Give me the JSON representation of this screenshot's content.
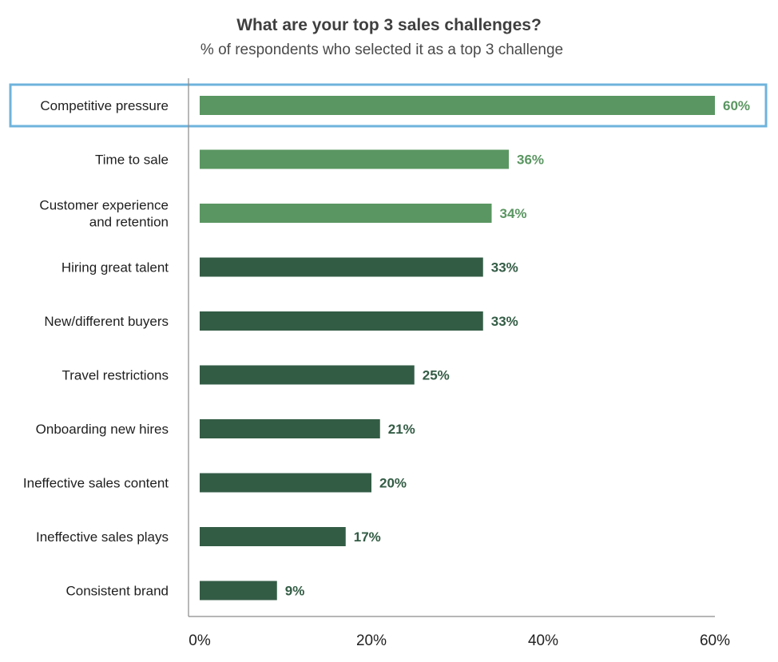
{
  "chart_data": {
    "type": "bar",
    "orientation": "horizontal",
    "title": "What are your top 3 sales challenges?",
    "subtitle": "% of respondents who selected it as a top 3 challenge",
    "categories": [
      "Competitive pressure",
      "Time to sale",
      "Customer experience and retention",
      "Hiring great talent",
      "New/different buyers",
      "Travel restrictions",
      "Onboarding new hires",
      "Ineffective sales content",
      "Ineffective sales plays",
      "Consistent brand"
    ],
    "category_lines": [
      [
        "Competitive pressure"
      ],
      [
        "Time to sale"
      ],
      [
        "Customer experience",
        "and retention"
      ],
      [
        "Hiring great talent"
      ],
      [
        "New/different buyers"
      ],
      [
        "Travel restrictions"
      ],
      [
        "Onboarding new hires"
      ],
      [
        "Ineffective sales content"
      ],
      [
        "Ineffective sales plays"
      ],
      [
        "Consistent brand"
      ]
    ],
    "values": [
      60,
      36,
      34,
      33,
      33,
      25,
      21,
      20,
      17,
      9
    ],
    "value_labels": [
      "60%",
      "36%",
      "34%",
      "33%",
      "33%",
      "25%",
      "21%",
      "20%",
      "17%",
      "9%"
    ],
    "xlim": [
      0,
      60
    ],
    "xticks": [
      0,
      20,
      40,
      60
    ],
    "xtick_labels": [
      "0%",
      "20%",
      "40%",
      "60%"
    ],
    "grid": false,
    "highlighted_category": "Competitive pressure",
    "colors": {
      "top3_bar": "#5a9661",
      "other_bar": "#335c45",
      "highlight_border": "#6fb3dc",
      "axis": "#8a8a8a"
    }
  }
}
